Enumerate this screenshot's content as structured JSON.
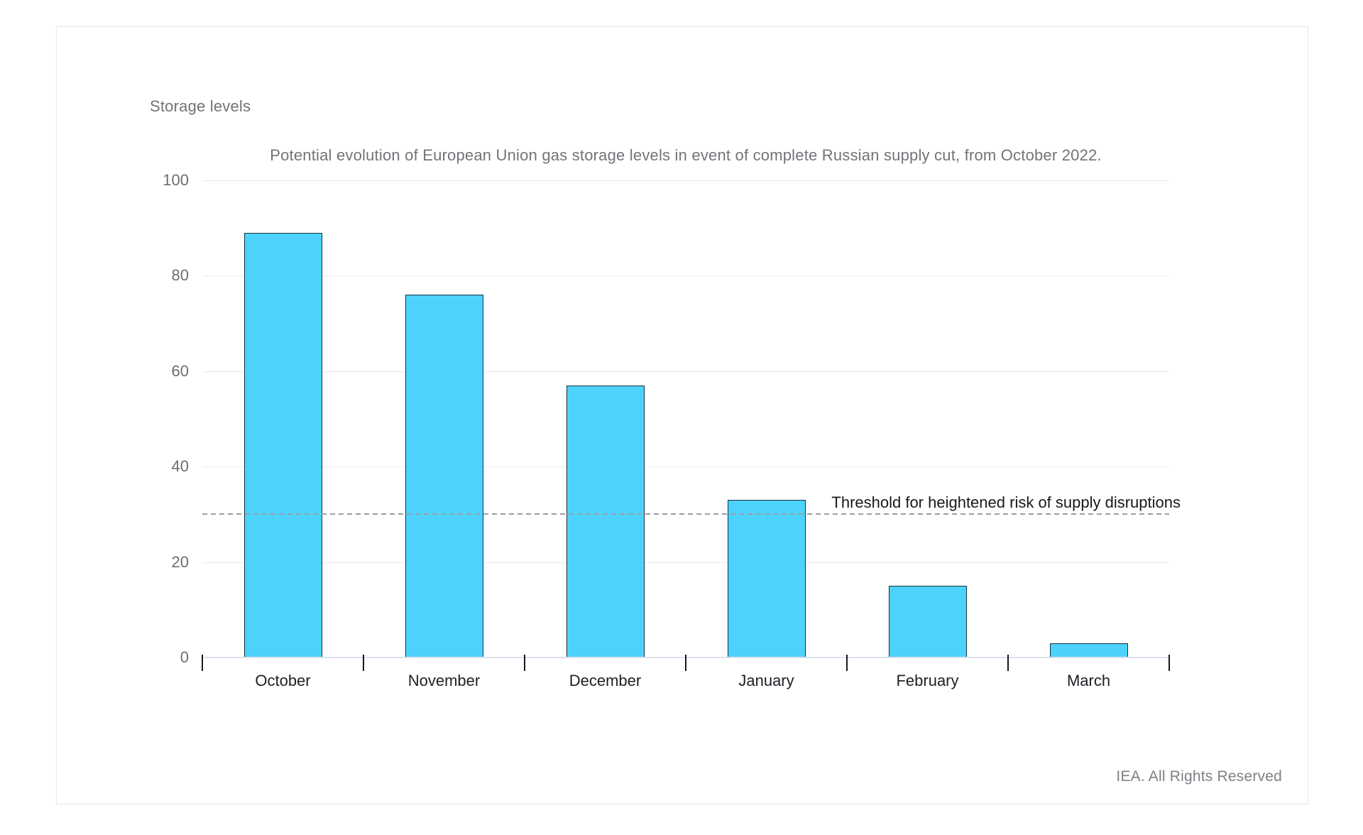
{
  "footer": {
    "text": "IEA. All Rights Reserved"
  },
  "chart_data": {
    "type": "bar",
    "title": "Potential evolution of European Union gas storage levels in event of complete Russian supply cut, from October 2022.",
    "ylabel": "Storage levels",
    "xlabel": "",
    "categories": [
      "October",
      "November",
      "December",
      "January",
      "February",
      "March"
    ],
    "values": [
      89,
      76,
      57,
      33,
      15,
      3
    ],
    "yticks": [
      0,
      20,
      40,
      60,
      80,
      100
    ],
    "ylim": [
      0,
      100
    ],
    "grid": true,
    "legend": "none",
    "threshold": {
      "value": 30,
      "label": "Threshold for heightened risk of supply disruptions"
    },
    "colors": {
      "bar_fill": "#4DD2FC",
      "bar_stroke": "#143240",
      "gridline": "#e9eaeb",
      "axis_line": "#dbe2ec",
      "threshold_dash": "#9aa0a6"
    },
    "footnote": "IEA. All Rights Reserved"
  }
}
